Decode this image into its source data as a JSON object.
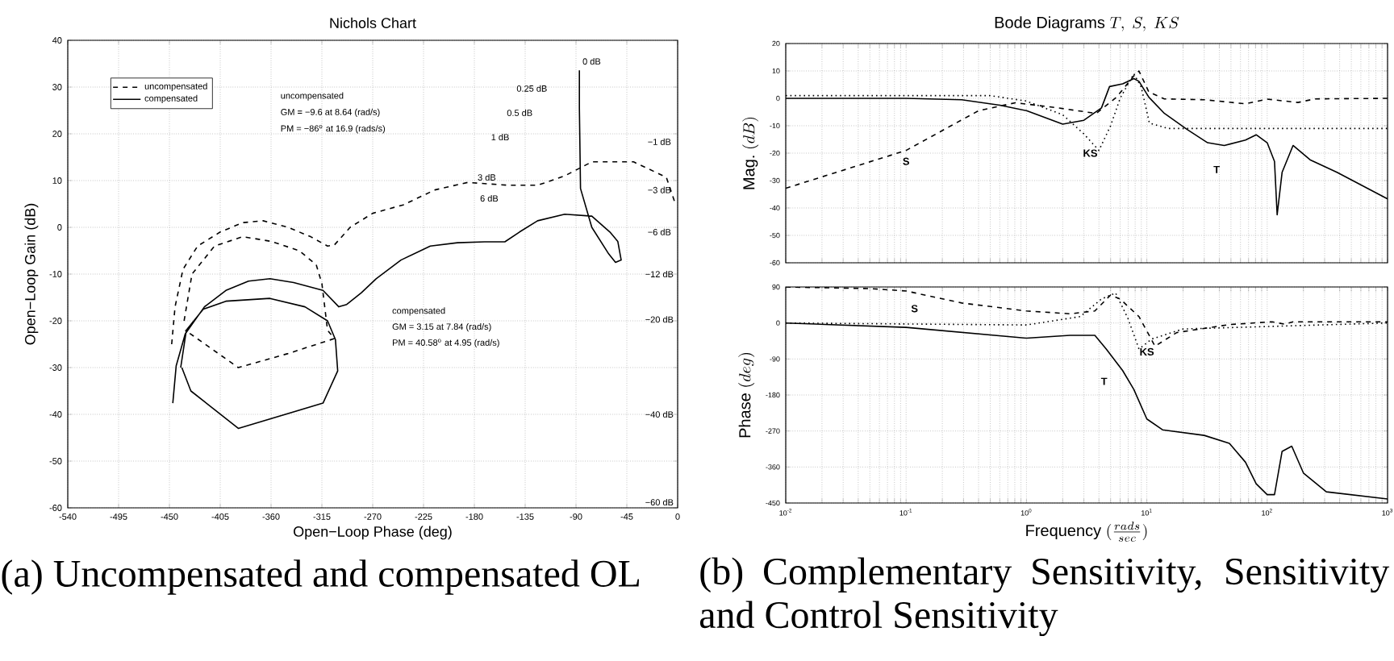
{
  "chart_data": [
    {
      "type": "line",
      "title": "Nichols Chart",
      "xlabel": "Open−Loop Phase (deg)",
      "ylabel": "Open−Loop Gain (dB)",
      "xlim": [
        -540,
        0
      ],
      "ylim": [
        -60,
        40
      ],
      "xticks": [
        -540,
        -495,
        -450,
        -405,
        -360,
        -315,
        -270,
        -225,
        -180,
        -135,
        -90,
        -45,
        0
      ],
      "yticks": [
        -60,
        -50,
        -40,
        -30,
        -20,
        -10,
        0,
        10,
        20,
        30,
        40
      ],
      "grid": true,
      "legend": "top left",
      "series": [
        {
          "name": "uncompensated",
          "color": "#000000",
          "line_style": "dashed",
          "x": [
            -448,
            -445,
            -438,
            -425,
            -405,
            -385,
            -367,
            -345,
            -325,
            -310,
            -304,
            -290,
            -270,
            -243,
            -215,
            -186,
            -150,
            -124,
            -100,
            -76,
            -39,
            -10,
            -2,
            null,
            -437,
            -430,
            -410,
            -385,
            -360,
            -335,
            -320,
            -315,
            -312,
            -310,
            -304,
            -345,
            -389,
            -436
          ],
          "values": [
            -25,
            -17,
            -9,
            -4,
            -1,
            1,
            1.4,
            0,
            -2,
            -4,
            -3.8,
            0,
            3,
            4.8,
            8,
            9.6,
            9,
            9,
            11,
            14,
            14,
            10.7,
            5,
            null,
            -20,
            -10,
            -4,
            -2,
            -3,
            -5,
            -8,
            -12,
            -18,
            -22,
            -23.8,
            -27,
            -30,
            -22
          ]
        },
        {
          "name": "compensated",
          "color": "#000000",
          "line_style": "solid",
          "x": [
            -447,
            -444,
            -436,
            -419,
            -400,
            -380,
            -361,
            -340,
            -314,
            -300,
            -293,
            -280,
            -267,
            -245,
            -219,
            -195,
            -171,
            -153,
            -140,
            -124,
            -100,
            -76,
            -60,
            -53,
            -50,
            -55,
            -61,
            -76,
            -86,
            -87,
            -87,
            null,
            -440,
            -435,
            -420,
            -400,
            -361,
            -330,
            -310,
            -303,
            -301,
            -314,
            -389,
            -431,
            -439
          ],
          "values": [
            -37.6,
            -29.6,
            -22.8,
            -17,
            -13.5,
            -11.5,
            -11,
            -11.8,
            -13.5,
            -17,
            -16.5,
            -14,
            -11,
            -7,
            -4,
            -3.3,
            -3.1,
            -3.1,
            -1,
            1.4,
            2.8,
            2.4,
            -1,
            -3,
            -7,
            -7.5,
            -5.7,
            0,
            8.3,
            25.5,
            33.6,
            null,
            -30,
            -22,
            -17.5,
            -15.8,
            -15.2,
            -17,
            -20,
            -24,
            -30.7,
            -37.6,
            -43,
            -35,
            -30
          ]
        }
      ],
      "annotations": [
        "uncompensated",
        "GM = −9.6 at 8.64 (rad/s)",
        "PM = −86$^{o}$ at 16.9 (rads/s)",
        "compensated",
        "GM = 3.15 at 7.84 (rad/s)",
        "PM = 40.58$^{o}$ at 4.95 (rad/s)",
        "(a) Uncompensated and compensated OL",
        "0 dB",
        "0.25 dB",
        "0.5 dB",
        "1 dB",
        "3 dB",
        "6 dB",
        "−1 dB",
        "−3 dB",
        "−6 dB",
        "−12 dB",
        "−20 dB",
        "−40 dB",
        "−60 dB"
      ]
    },
    {
      "type": "line",
      "title": "\\mathrm{Bode\\ Diagrams}\\ T,\\ S,\\ KS",
      "ylabel": "\\mathrm{Mag.}\\ (dB)",
      "log": "x",
      "xlim": [
        0.01,
        1000
      ],
      "ylim": [
        -60,
        20
      ],
      "tick_labels": "y",
      "xticks": [
        {
          "value": 0.01,
          "label": null
        },
        {
          "value": 0.1,
          "label": null
        },
        {
          "value": 1,
          "label": null
        },
        {
          "value": 10,
          "label": null
        },
        {
          "value": 100,
          "label": null
        },
        {
          "value": 1000,
          "label": null
        }
      ],
      "yticks": [
        -60,
        -50,
        -40,
        -30,
        -20,
        -10,
        0,
        10,
        20
      ],
      "grid": true,
      "series": [
        {
          "color": "#000000",
          "line_style": "solid",
          "x": [
            0.01,
            0.1,
            0.29,
            0.6,
            1,
            2,
            3,
            4.2,
            4.9,
            6.3,
            7.8,
            8.6,
            10.4,
            14,
            21.5,
            32,
            44,
            66,
            81,
            100,
            115,
            121,
            133,
            164,
            227,
            380,
            1000
          ],
          "values": [
            0,
            0,
            -0.5,
            -2.5,
            -4.5,
            -9.4,
            -8,
            -3.5,
            4.3,
            5.3,
            7.2,
            6.2,
            0.4,
            -5.5,
            -11.3,
            -16.2,
            -17.2,
            -15.2,
            -13.3,
            -16.2,
            -23,
            -42.5,
            -27,
            -17.2,
            -22.4,
            -27,
            -36.7
          ]
        },
        {
          "color": "#000000",
          "line_style": "dashed",
          "x": [
            0.01,
            0.1,
            0.4,
            0.81,
            1.84,
            3.8,
            5.6,
            7.8,
            8.6,
            10.4,
            14,
            30,
            66,
            100,
            180,
            250,
            1000
          ],
          "values": [
            -32.8,
            -19,
            -4.5,
            -1.6,
            -3.5,
            -5.5,
            0.4,
            8.2,
            10,
            2.3,
            -0.2,
            -0.5,
            -2,
            -0.3,
            -1.5,
            -0.2,
            0
          ]
        },
        {
          "color": "#000000",
          "line_style": "dotted",
          "x": [
            0.01,
            0.5,
            1,
            2,
            3,
            4,
            5,
            6,
            7.8,
            9,
            10.5,
            15,
            100,
            1000
          ],
          "values": [
            1,
            1,
            -1,
            -6,
            -13,
            -19,
            -10,
            0,
            9,
            4,
            -9,
            -11,
            -11,
            -11
          ]
        }
      ],
      "annotations": [
        "S",
        "KS",
        "T"
      ]
    },
    {
      "type": "line",
      "xlabel": "\\mathrm{Frequency}\\ (\\frac{rads}{sec})",
      "ylabel": "\\mathrm{Phase}\\ (deg)",
      "log": "x",
      "xlim": [
        0.01,
        1000
      ],
      "ylim": [
        -450,
        90
      ],
      "xticks": [
        {
          "value": 0.01,
          "label": "10$^{-2}$"
        },
        {
          "value": 0.1,
          "label": "10$^{-1}$"
        },
        {
          "value": 1,
          "label": "10$^{0}$"
        },
        {
          "value": 10,
          "label": "10$^{1}$"
        },
        {
          "value": 100,
          "label": "10$^{2}$"
        },
        {
          "value": 1000,
          "label": "10$^{3}$"
        }
      ],
      "yticks": [
        -450,
        -360,
        -270,
        -180,
        -90,
        0,
        90
      ],
      "grid": true,
      "series": [
        {
          "color": "#000000",
          "line_style": "solid",
          "x": [
            0.01,
            0.1,
            1,
            2.3,
            3.7,
            4.6,
            6.3,
            7.8,
            10,
            13.5,
            30,
            48.5,
            66,
            81,
            100,
            115,
            133,
            160,
            200,
            310,
            1000
          ],
          "values": [
            0,
            -11,
            -38,
            -31,
            -31,
            -65,
            -119,
            -166,
            -240,
            -267,
            -281,
            -301,
            -348,
            -402,
            -429,
            -429,
            -321,
            -308,
            -375,
            -422,
            -440
          ]
        },
        {
          "color": "#000000",
          "line_style": "dashed",
          "x": [
            0.01,
            0.05,
            0.1,
            0.29,
            1,
            2.3,
            3.7,
            5,
            6,
            8.6,
            11.7,
            17.7,
            48.5,
            110,
            140,
            164,
            1000
          ],
          "values": [
            90,
            86,
            80,
            50,
            30,
            23,
            30,
            70,
            60,
            16,
            -58,
            -24,
            -4,
            3,
            -3,
            3,
            3
          ]
        },
        {
          "color": "#000000",
          "line_style": "dotted",
          "x": [
            0.01,
            1,
            2.8,
            4.2,
            5.5,
            7,
            8.6,
            11,
            20,
            1000
          ],
          "values": [
            0,
            -5,
            16,
            60,
            75,
            10,
            -65,
            -40,
            -15,
            0
          ]
        }
      ],
      "annotations": [
        "S",
        "T",
        "KS",
        "(b) Complementary Sensitivity, Sensitivity and Control Sensitivity"
      ]
    }
  ]
}
